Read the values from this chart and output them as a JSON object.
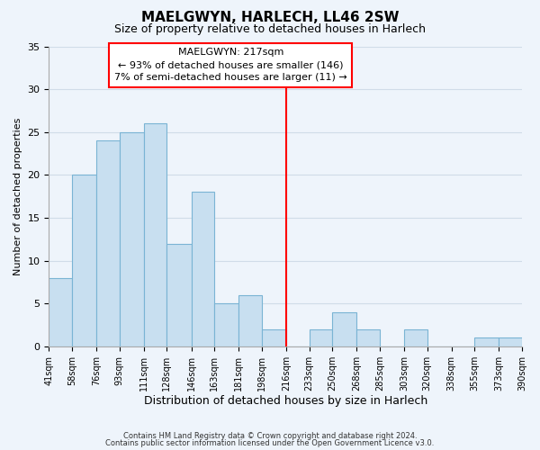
{
  "title": "MAELGWYN, HARLECH, LL46 2SW",
  "subtitle": "Size of property relative to detached houses in Harlech",
  "xlabel": "Distribution of detached houses by size in Harlech",
  "ylabel": "Number of detached properties",
  "bin_edges": [
    41,
    58,
    76,
    93,
    111,
    128,
    146,
    163,
    181,
    198,
    216,
    233,
    250,
    268,
    285,
    303,
    320,
    338,
    355,
    373,
    390
  ],
  "bar_heights": [
    8,
    20,
    24,
    25,
    26,
    12,
    18,
    5,
    6,
    2,
    0,
    2,
    4,
    2,
    0,
    2,
    0,
    0,
    1,
    1
  ],
  "bar_color": "#c8dff0",
  "bar_edge_color": "#7ab4d4",
  "vline_x": 216,
  "vline_color": "red",
  "annotation_title": "MAELGWYN: 217sqm",
  "annotation_line1": "← 93% of detached houses are smaller (146)",
  "annotation_line2": "7% of semi-detached houses are larger (11) →",
  "ylim": [
    0,
    35
  ],
  "yticks": [
    0,
    5,
    10,
    15,
    20,
    25,
    30,
    35
  ],
  "footer1": "Contains HM Land Registry data © Crown copyright and database right 2024.",
  "footer2": "Contains public sector information licensed under the Open Government Licence v3.0.",
  "background_color": "#eef4fb",
  "grid_color": "#d0dce8"
}
